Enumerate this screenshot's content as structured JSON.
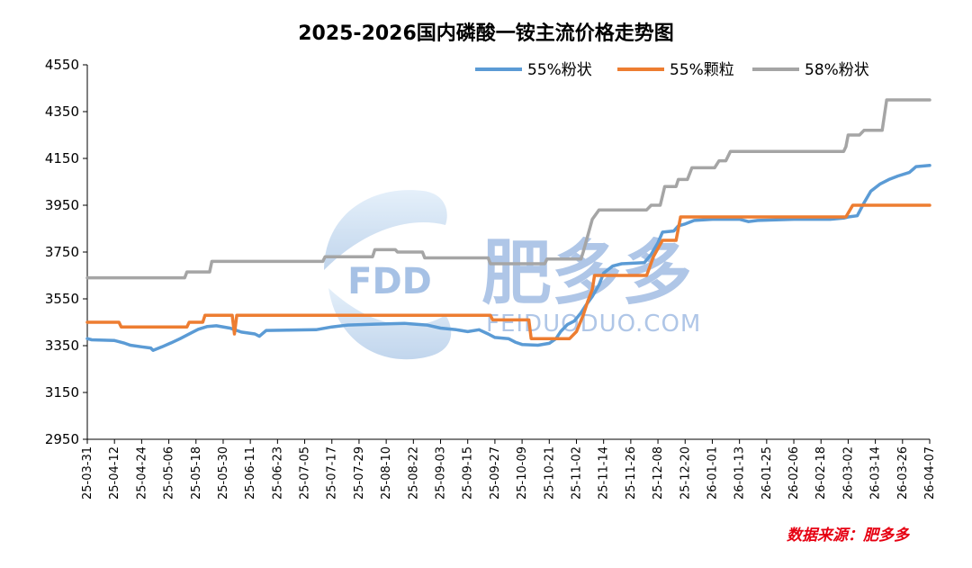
{
  "chart_data": {
    "type": "line",
    "title": "2025-2026国内磷酸一铵主流价格走势图",
    "source": "数据来源：肥多多",
    "watermark": {
      "brand": "FDD",
      "name": "肥多多",
      "url": "FEIDUODUO.COM"
    },
    "xlabel": "",
    "ylabel": "",
    "ylim": [
      2950,
      4550
    ],
    "yticks": [
      2950,
      3150,
      3350,
      3550,
      3750,
      3950,
      4150,
      4350,
      4550
    ],
    "grid": false,
    "legend_position": "top-right",
    "x_start": "2025-03-31",
    "x_end": "2026-04-07",
    "xtick_labels": [
      "25-03-31",
      "25-04-12",
      "25-04-24",
      "25-05-06",
      "25-05-18",
      "25-05-30",
      "25-06-11",
      "25-06-23",
      "25-07-05",
      "25-07-17",
      "25-07-29",
      "25-08-10",
      "25-08-22",
      "25-09-03",
      "25-09-15",
      "25-09-27",
      "25-10-09",
      "25-10-21",
      "25-11-02",
      "25-11-14",
      "25-11-26",
      "25-12-08",
      "25-12-20",
      "26-01-01",
      "26-01-13",
      "26-01-25",
      "26-02-06",
      "26-02-18",
      "26-03-02",
      "26-03-14",
      "26-03-26",
      "26-04-07"
    ],
    "series": [
      {
        "name": "55%粉状",
        "color": "#5b9bd5",
        "points": [
          [
            "2025-03-31",
            3380
          ],
          [
            "2025-04-02",
            3375
          ],
          [
            "2025-04-12",
            3372
          ],
          [
            "2025-04-16",
            3362
          ],
          [
            "2025-04-19",
            3352
          ],
          [
            "2025-04-24",
            3345
          ],
          [
            "2025-04-28",
            3340
          ],
          [
            "2025-04-29",
            3330
          ],
          [
            "2025-05-03",
            3345
          ],
          [
            "2025-05-07",
            3362
          ],
          [
            "2025-05-11",
            3380
          ],
          [
            "2025-05-16",
            3405
          ],
          [
            "2025-05-19",
            3420
          ],
          [
            "2025-05-23",
            3432
          ],
          [
            "2025-05-27",
            3435
          ],
          [
            "2025-06-02",
            3425
          ],
          [
            "2025-06-07",
            3408
          ],
          [
            "2025-06-13",
            3400
          ],
          [
            "2025-06-15",
            3390
          ],
          [
            "2025-06-18",
            3415
          ],
          [
            "2025-07-10",
            3418
          ],
          [
            "2025-07-17",
            3430
          ],
          [
            "2025-07-24",
            3438
          ],
          [
            "2025-08-05",
            3442
          ],
          [
            "2025-08-18",
            3445
          ],
          [
            "2025-08-28",
            3438
          ],
          [
            "2025-09-03",
            3425
          ],
          [
            "2025-09-10",
            3418
          ],
          [
            "2025-09-15",
            3410
          ],
          [
            "2025-09-20",
            3418
          ],
          [
            "2025-09-24",
            3400
          ],
          [
            "2025-09-27",
            3385
          ],
          [
            "2025-10-03",
            3380
          ],
          [
            "2025-10-06",
            3365
          ],
          [
            "2025-10-09",
            3355
          ],
          [
            "2025-10-16",
            3352
          ],
          [
            "2025-10-21",
            3360
          ],
          [
            "2025-10-24",
            3380
          ],
          [
            "2025-10-26",
            3410
          ],
          [
            "2025-10-29",
            3440
          ],
          [
            "2025-11-01",
            3455
          ],
          [
            "2025-11-04",
            3490
          ],
          [
            "2025-11-06",
            3520
          ],
          [
            "2025-11-09",
            3560
          ],
          [
            "2025-11-12",
            3610
          ],
          [
            "2025-11-14",
            3660
          ],
          [
            "2025-11-18",
            3690
          ],
          [
            "2025-11-22",
            3700
          ],
          [
            "2025-11-26",
            3702
          ],
          [
            "2025-12-02",
            3705
          ],
          [
            "2025-12-05",
            3740
          ],
          [
            "2025-12-08",
            3790
          ],
          [
            "2025-12-10",
            3835
          ],
          [
            "2025-12-15",
            3840
          ],
          [
            "2025-12-17",
            3862
          ],
          [
            "2025-12-20",
            3870
          ],
          [
            "2025-12-24",
            3885
          ],
          [
            "2026-01-01",
            3890
          ],
          [
            "2026-01-13",
            3890
          ],
          [
            "2026-01-17",
            3880
          ],
          [
            "2026-01-21",
            3885
          ],
          [
            "2026-02-06",
            3890
          ],
          [
            "2026-02-22",
            3890
          ],
          [
            "2026-02-28",
            3895
          ],
          [
            "2026-03-02",
            3900
          ],
          [
            "2026-03-06",
            3905
          ],
          [
            "2026-03-09",
            3960
          ],
          [
            "2026-03-12",
            4010
          ],
          [
            "2026-03-16",
            4040
          ],
          [
            "2026-03-20",
            4060
          ],
          [
            "2026-03-24",
            4075
          ],
          [
            "2026-03-29",
            4090
          ],
          [
            "2026-04-01",
            4115
          ],
          [
            "2026-04-07",
            4120
          ]
        ]
      },
      {
        "name": "55%颗粒",
        "color": "#ed7d31",
        "points": [
          [
            "2025-03-31",
            3450
          ],
          [
            "2025-04-14",
            3450
          ],
          [
            "2025-04-15",
            3430
          ],
          [
            "2025-05-14",
            3430
          ],
          [
            "2025-05-15",
            3450
          ],
          [
            "2025-05-21",
            3450
          ],
          [
            "2025-05-22",
            3480
          ],
          [
            "2025-06-03",
            3480
          ],
          [
            "2025-06-04",
            3400
          ],
          [
            "2025-06-05",
            3480
          ],
          [
            "2025-09-25",
            3480
          ],
          [
            "2025-09-26",
            3460
          ],
          [
            "2025-10-12",
            3460
          ],
          [
            "2025-10-13",
            3380
          ],
          [
            "2025-10-30",
            3380
          ],
          [
            "2025-11-02",
            3410
          ],
          [
            "2025-11-05",
            3480
          ],
          [
            "2025-11-07",
            3540
          ],
          [
            "2025-11-09",
            3590
          ],
          [
            "2025-11-10",
            3650
          ],
          [
            "2025-12-03",
            3650
          ],
          [
            "2025-12-06",
            3730
          ],
          [
            "2025-12-10",
            3800
          ],
          [
            "2025-12-16",
            3800
          ],
          [
            "2025-12-18",
            3900
          ],
          [
            "2026-03-01",
            3900
          ],
          [
            "2026-03-04",
            3950
          ],
          [
            "2026-04-07",
            3950
          ]
        ]
      },
      {
        "name": "58%粉状",
        "color": "#a5a5a5",
        "points": [
          [
            "2025-03-31",
            3640
          ],
          [
            "2025-05-13",
            3640
          ],
          [
            "2025-05-14",
            3665
          ],
          [
            "2025-05-24",
            3665
          ],
          [
            "2025-05-25",
            3710
          ],
          [
            "2025-07-13",
            3710
          ],
          [
            "2025-07-14",
            3730
          ],
          [
            "2025-08-04",
            3730
          ],
          [
            "2025-08-05",
            3760
          ],
          [
            "2025-08-14",
            3760
          ],
          [
            "2025-08-15",
            3750
          ],
          [
            "2025-08-26",
            3750
          ],
          [
            "2025-08-27",
            3725
          ],
          [
            "2025-09-24",
            3725
          ],
          [
            "2025-09-25",
            3700
          ],
          [
            "2025-10-19",
            3700
          ],
          [
            "2025-10-20",
            3720
          ],
          [
            "2025-11-04",
            3720
          ],
          [
            "2025-11-05",
            3750
          ],
          [
            "2025-11-09",
            3890
          ],
          [
            "2025-11-12",
            3930
          ],
          [
            "2025-12-03",
            3930
          ],
          [
            "2025-12-05",
            3950
          ],
          [
            "2025-12-09",
            3950
          ],
          [
            "2025-12-11",
            4030
          ],
          [
            "2025-12-16",
            4030
          ],
          [
            "2025-12-17",
            4060
          ],
          [
            "2025-12-21",
            4060
          ],
          [
            "2025-12-23",
            4110
          ],
          [
            "2026-01-02",
            4110
          ],
          [
            "2026-01-04",
            4140
          ],
          [
            "2026-01-07",
            4140
          ],
          [
            "2026-01-09",
            4180
          ],
          [
            "2026-02-28",
            4180
          ],
          [
            "2026-03-01",
            4200
          ],
          [
            "2026-03-02",
            4250
          ],
          [
            "2026-03-07",
            4250
          ],
          [
            "2026-03-09",
            4270
          ],
          [
            "2026-03-17",
            4270
          ],
          [
            "2026-03-19",
            4400
          ],
          [
            "2026-04-07",
            4400
          ]
        ]
      }
    ]
  }
}
